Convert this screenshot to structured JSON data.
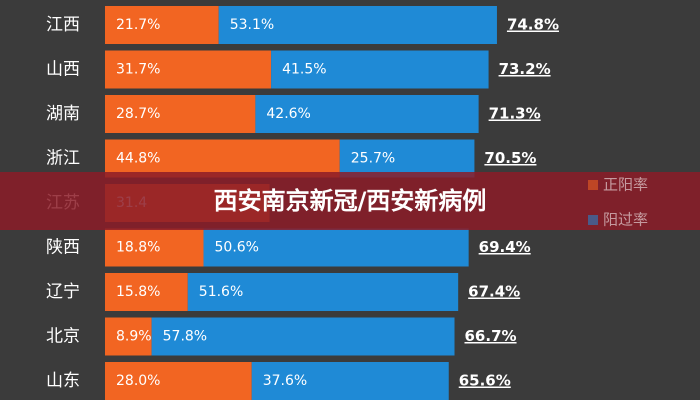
{
  "chart_data": {
    "type": "stacked-bar-horizontal",
    "title": "西安南京新冠/西安新病例",
    "categories": [
      "江西",
      "山西",
      "湖南",
      "浙江",
      "江苏",
      "陕西",
      "辽宁",
      "北京",
      "山东"
    ],
    "series": [
      {
        "name": "正阳率",
        "color": "#f26522",
        "values": [
          21.7,
          31.7,
          28.7,
          44.8,
          31.4,
          18.8,
          15.8,
          8.9,
          28.0
        ],
        "value_labels": [
          "21.7%",
          "31.7%",
          "28.7%",
          "44.8%",
          "31.4",
          "18.8%",
          "15.8%",
          "8.9%",
          "28.0%"
        ]
      },
      {
        "name": "阳过率",
        "color": "#1f8ad6",
        "values": [
          53.1,
          41.5,
          42.6,
          25.7,
          null,
          50.6,
          51.6,
          57.8,
          37.6
        ],
        "value_labels": [
          "53.1%",
          "41.5%",
          "42.6%",
          "25.7%",
          null,
          "50.6%",
          "51.6%",
          "57.8%",
          "37.6%"
        ]
      }
    ],
    "totals": [
      74.8,
      73.2,
      71.3,
      70.5,
      null,
      69.4,
      67.4,
      66.7,
      65.6
    ],
    "total_labels": [
      "74.8%",
      "73.2%",
      "71.3%",
      "70.5%",
      null,
      "69.4%",
      "67.4%",
      "66.7%",
      "65.6%"
    ],
    "legend": "right"
  }
}
